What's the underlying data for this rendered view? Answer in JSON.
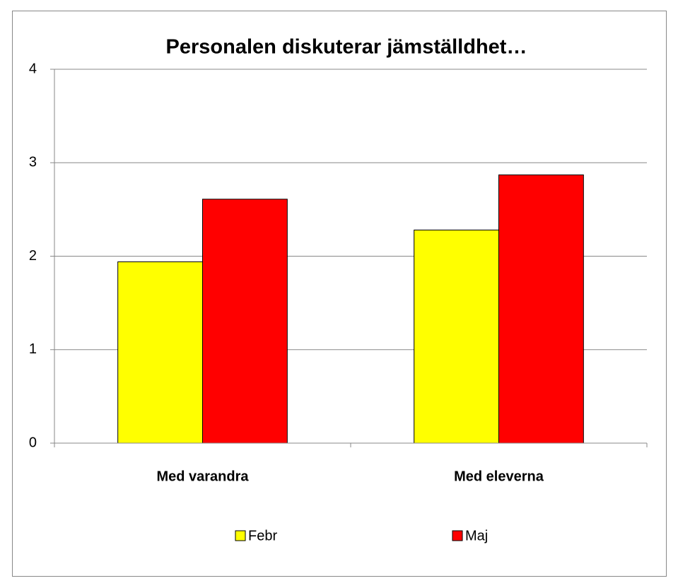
{
  "chart_data": {
    "type": "bar",
    "title": "Personalen diskuterar jämställdhet…",
    "categories": [
      "Med varandra",
      "Med eleverna"
    ],
    "series": [
      {
        "name": "Febr",
        "color": "#ffff00",
        "values": [
          1.94,
          2.28
        ]
      },
      {
        "name": "Maj",
        "color": "#ff0000",
        "values": [
          2.61,
          2.87
        ]
      }
    ],
    "ylim": [
      0,
      4
    ],
    "yticks": [
      0,
      1,
      2,
      3,
      4
    ],
    "grid": true,
    "legend": "bottom"
  }
}
